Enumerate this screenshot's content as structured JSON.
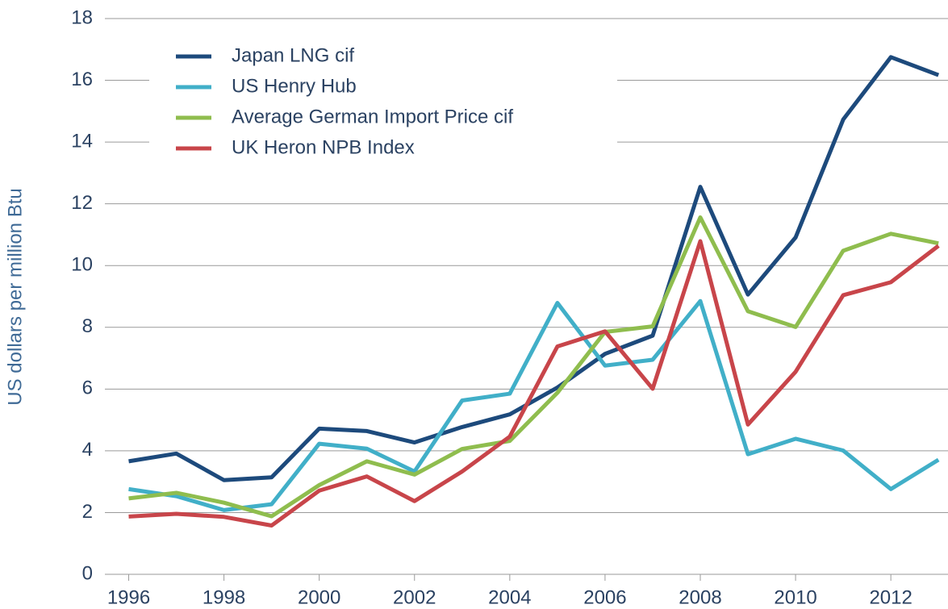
{
  "chart_data": {
    "type": "line",
    "y_label": "US dollars per million Btu",
    "x": [
      1996,
      1997,
      1998,
      1999,
      2000,
      2001,
      2002,
      2003,
      2004,
      2005,
      2006,
      2007,
      2008,
      2009,
      2010,
      2011,
      2012,
      2013
    ],
    "series": [
      {
        "name": "Japan LNG cif",
        "color": "#1d4a7c",
        "values": [
          3.66,
          3.91,
          3.05,
          3.14,
          4.72,
          4.64,
          4.27,
          4.77,
          5.18,
          6.05,
          7.14,
          7.73,
          12.55,
          9.06,
          10.91,
          14.73,
          16.75,
          16.17
        ]
      },
      {
        "name": "US Henry Hub",
        "color": "#41afc8",
        "values": [
          2.76,
          2.53,
          2.08,
          2.27,
          4.23,
          4.07,
          3.33,
          5.63,
          5.85,
          8.79,
          6.76,
          6.95,
          8.85,
          3.89,
          4.39,
          4.01,
          2.76,
          3.71
        ]
      },
      {
        "name": "Average German Import Price cif",
        "color": "#8fbd4e",
        "values": [
          2.46,
          2.64,
          2.32,
          1.88,
          2.89,
          3.66,
          3.23,
          4.06,
          4.32,
          5.88,
          7.85,
          8.03,
          11.56,
          8.52,
          8.01,
          10.48,
          11.03,
          10.72
        ]
      },
      {
        "name": "UK Heron NPB Index",
        "color": "#c8454a",
        "values": [
          1.87,
          1.96,
          1.86,
          1.58,
          2.71,
          3.17,
          2.37,
          3.33,
          4.46,
          7.38,
          7.87,
          6.01,
          10.79,
          4.85,
          6.56,
          9.04,
          9.46,
          10.64
        ]
      }
    ],
    "xlim": [
      1995.5,
      2013.2
    ],
    "xticks": [
      1996,
      1998,
      2000,
      2002,
      2004,
      2006,
      2008,
      2010,
      2012
    ],
    "ylim": [
      0,
      18
    ],
    "yticks": [
      0,
      2,
      4,
      6,
      8,
      10,
      12,
      14,
      16,
      18
    ],
    "grid": true,
    "legend": "upper left"
  }
}
